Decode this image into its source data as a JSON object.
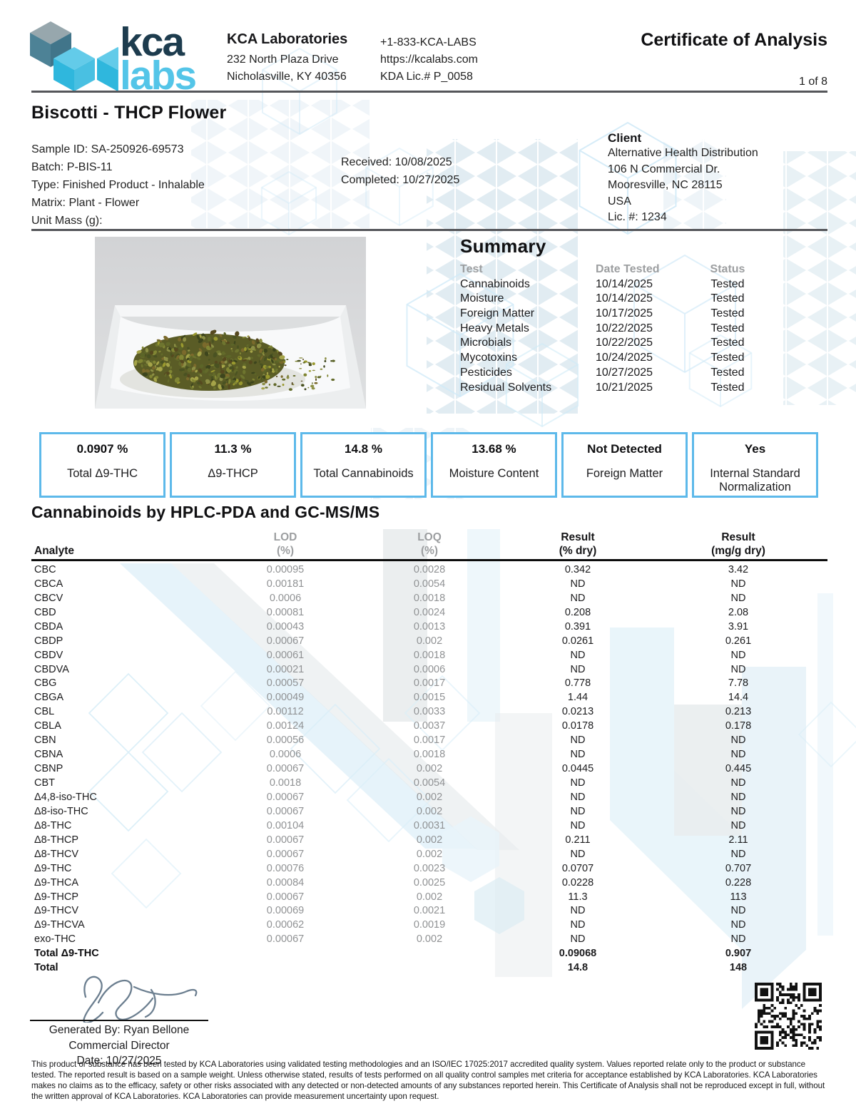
{
  "header": {
    "logo_kca": "kca",
    "logo_labs": "labs",
    "lab_name": "KCA Laboratories",
    "address_line1": "232 North Plaza Drive",
    "address_line2": "Nicholasville, KY 40356",
    "phone": "+1-833-KCA-LABS",
    "website": "https://kcalabs.com",
    "license": "KDA Lic.# P_0058",
    "doc_title": "Certificate of Analysis",
    "page_indicator": "1 of 8"
  },
  "sample": {
    "title": "Biscotti - THCP Flower",
    "details": [
      "Sample ID: SA-250926-69573",
      "Batch: P-BIS-11",
      "Type: Finished Product - Inhalable",
      "Matrix: Plant - Flower",
      "Unit Mass (g):"
    ],
    "received": "Received: 10/08/2025",
    "completed": "Completed: 10/27/2025"
  },
  "client": {
    "heading": "Client",
    "lines": [
      "Alternative Health Distribution",
      "106 N Commercial Dr.",
      "Mooresville, NC 28115",
      "USA",
      "Lic. #: 1234"
    ]
  },
  "summary": {
    "heading": "Summary",
    "columns": [
      "Test",
      "Date Tested",
      "Status"
    ],
    "rows": [
      [
        "Cannabinoids",
        "10/14/2025",
        "Tested"
      ],
      [
        "Moisture",
        "10/14/2025",
        "Tested"
      ],
      [
        "Foreign Matter",
        "10/17/2025",
        "Tested"
      ],
      [
        "Heavy Metals",
        "10/22/2025",
        "Tested"
      ],
      [
        "Microbials",
        "10/22/2025",
        "Tested"
      ],
      [
        "Mycotoxins",
        "10/24/2025",
        "Tested"
      ],
      [
        "Pesticides",
        "10/27/2025",
        "Tested"
      ],
      [
        "Residual Solvents",
        "10/21/2025",
        "Tested"
      ]
    ]
  },
  "highlights": [
    {
      "value": "0.0907 %",
      "label": "Total Δ9-THC"
    },
    {
      "value": "11.3 %",
      "label": "Δ9-THCP"
    },
    {
      "value": "14.8 %",
      "label": "Total Cannabinoids"
    },
    {
      "value": "13.68 %",
      "label": "Moisture Content"
    },
    {
      "value": "Not Detected",
      "label": "Foreign Matter"
    },
    {
      "value": "Yes",
      "label": "Internal Standard Normalization"
    }
  ],
  "cannabinoids": {
    "heading": "Cannabinoids by HPLC-PDA and GC-MS/MS",
    "columns": {
      "analyte": "Analyte",
      "lod_l1": "LOD",
      "lod_l2": "(%)",
      "loq_l1": "LOQ",
      "loq_l2": "(%)",
      "rpct_l1": "Result",
      "rpct_l2": "(% dry)",
      "rmg_l1": "Result",
      "rmg_l2": "(mg/g dry)"
    },
    "rows": [
      {
        "analyte": "CBC",
        "lod": "0.00095",
        "loq": "0.0028",
        "result_pct": "0.342",
        "result_mg": "3.42",
        "bold": false
      },
      {
        "analyte": "CBCA",
        "lod": "0.00181",
        "loq": "0.0054",
        "result_pct": "ND",
        "result_mg": "ND",
        "bold": false
      },
      {
        "analyte": "CBCV",
        "lod": "0.0006",
        "loq": "0.0018",
        "result_pct": "ND",
        "result_mg": "ND",
        "bold": false
      },
      {
        "analyte": "CBD",
        "lod": "0.00081",
        "loq": "0.0024",
        "result_pct": "0.208",
        "result_mg": "2.08",
        "bold": false
      },
      {
        "analyte": "CBDA",
        "lod": "0.00043",
        "loq": "0.0013",
        "result_pct": "0.391",
        "result_mg": "3.91",
        "bold": false
      },
      {
        "analyte": "CBDP",
        "lod": "0.00067",
        "loq": "0.002",
        "result_pct": "0.0261",
        "result_mg": "0.261",
        "bold": false
      },
      {
        "analyte": "CBDV",
        "lod": "0.00061",
        "loq": "0.0018",
        "result_pct": "ND",
        "result_mg": "ND",
        "bold": false
      },
      {
        "analyte": "CBDVA",
        "lod": "0.00021",
        "loq": "0.0006",
        "result_pct": "ND",
        "result_mg": "ND",
        "bold": false
      },
      {
        "analyte": "CBG",
        "lod": "0.00057",
        "loq": "0.0017",
        "result_pct": "0.778",
        "result_mg": "7.78",
        "bold": false
      },
      {
        "analyte": "CBGA",
        "lod": "0.00049",
        "loq": "0.0015",
        "result_pct": "1.44",
        "result_mg": "14.4",
        "bold": false
      },
      {
        "analyte": "CBL",
        "lod": "0.00112",
        "loq": "0.0033",
        "result_pct": "0.0213",
        "result_mg": "0.213",
        "bold": false
      },
      {
        "analyte": "CBLA",
        "lod": "0.00124",
        "loq": "0.0037",
        "result_pct": "0.0178",
        "result_mg": "0.178",
        "bold": false
      },
      {
        "analyte": "CBN",
        "lod": "0.00056",
        "loq": "0.0017",
        "result_pct": "ND",
        "result_mg": "ND",
        "bold": false
      },
      {
        "analyte": "CBNA",
        "lod": "0.0006",
        "loq": "0.0018",
        "result_pct": "ND",
        "result_mg": "ND",
        "bold": false
      },
      {
        "analyte": "CBNP",
        "lod": "0.00067",
        "loq": "0.002",
        "result_pct": "0.0445",
        "result_mg": "0.445",
        "bold": false
      },
      {
        "analyte": "CBT",
        "lod": "0.0018",
        "loq": "0.0054",
        "result_pct": "ND",
        "result_mg": "ND",
        "bold": false
      },
      {
        "analyte": "Δ4,8-iso-THC",
        "lod": "0.00067",
        "loq": "0.002",
        "result_pct": "ND",
        "result_mg": "ND",
        "bold": false
      },
      {
        "analyte": "Δ8-iso-THC",
        "lod": "0.00067",
        "loq": "0.002",
        "result_pct": "ND",
        "result_mg": "ND",
        "bold": false
      },
      {
        "analyte": "Δ8-THC",
        "lod": "0.00104",
        "loq": "0.0031",
        "result_pct": "ND",
        "result_mg": "ND",
        "bold": false
      },
      {
        "analyte": "Δ8-THCP",
        "lod": "0.00067",
        "loq": "0.002",
        "result_pct": "0.211",
        "result_mg": "2.11",
        "bold": false
      },
      {
        "analyte": "Δ8-THCV",
        "lod": "0.00067",
        "loq": "0.002",
        "result_pct": "ND",
        "result_mg": "ND",
        "bold": false
      },
      {
        "analyte": "Δ9-THC",
        "lod": "0.00076",
        "loq": "0.0023",
        "result_pct": "0.0707",
        "result_mg": "0.707",
        "bold": false
      },
      {
        "analyte": "Δ9-THCA",
        "lod": "0.00084",
        "loq": "0.0025",
        "result_pct": "0.0228",
        "result_mg": "0.228",
        "bold": false
      },
      {
        "analyte": "Δ9-THCP",
        "lod": "0.00067",
        "loq": "0.002",
        "result_pct": "11.3",
        "result_mg": "113",
        "bold": false
      },
      {
        "analyte": "Δ9-THCV",
        "lod": "0.00069",
        "loq": "0.0021",
        "result_pct": "ND",
        "result_mg": "ND",
        "bold": false
      },
      {
        "analyte": "Δ9-THCVA",
        "lod": "0.00062",
        "loq": "0.0019",
        "result_pct": "ND",
        "result_mg": "ND",
        "bold": false
      },
      {
        "analyte": "exo-THC",
        "lod": "0.00067",
        "loq": "0.002",
        "result_pct": "ND",
        "result_mg": "ND",
        "bold": false
      },
      {
        "analyte": "Total Δ9-THC",
        "lod": "",
        "loq": "",
        "result_pct": "0.09068",
        "result_mg": "0.907",
        "bold": true
      },
      {
        "analyte": "Total",
        "lod": "",
        "loq": "",
        "result_pct": "14.8",
        "result_mg": "148",
        "bold": true
      }
    ]
  },
  "signature": {
    "generated_by": "Generated By: Ryan Bellone",
    "role": "Commercial Director",
    "date": "Date: 10/27/2025"
  },
  "footer": {
    "disclaimer": "This product or substance has been tested by KCA Laboratories using validated testing methodologies and an ISO/IEC 17025:2017 accredited quality system. Values reported relate only to the product or substance tested. The reported result is based on a sample weight. Unless otherwise stated, results of tests performed on all quality control samples met criteria for acceptance established by KCA Laboratories. KCA Laboratories makes no claims as to the efficacy, safety or other risks associated with any detected or non-detected amounts of any substances reported herein. This Certificate of Analysis shall not be reproduced except in full, without the written approval of KCA Laboratories. KCA Laboratories can provide measurement uncertainty upon request."
  },
  "colors": {
    "brand_dark": "#1d3c4e",
    "brand_light_blue": "#54c5e8",
    "box_border": "#5db9ea",
    "muted_gray": "#9c9ea0",
    "rule_gray": "#55565a"
  }
}
